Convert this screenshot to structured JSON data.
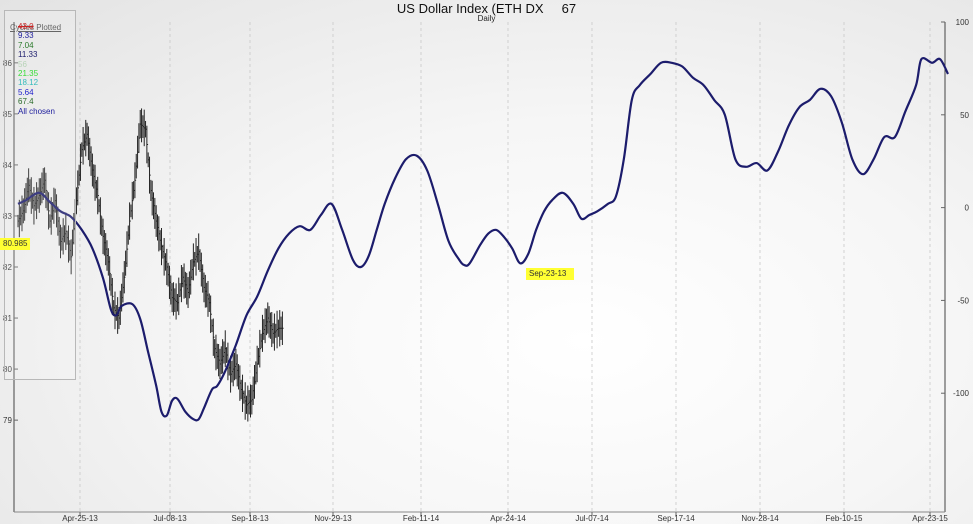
{
  "chart_data": {
    "type": "line",
    "title": "US Dollar Index (ETH DX",
    "title_value": "67",
    "subtitle": "Daily",
    "x_labels": [
      "Apr-25-13",
      "Jul-08-13",
      "Sep-18-13",
      "Nov-29-13",
      "Feb-11-14",
      "Apr-24-14",
      "Jul-07-14",
      "Sep-17-14",
      "Nov-28-14",
      "Feb-10-15",
      "Apr-23-15"
    ],
    "y_left": {
      "ticks": [
        79,
        80,
        81,
        82,
        83,
        84,
        85,
        86
      ],
      "range": [
        77.2,
        86.8
      ]
    },
    "y_right": {
      "ticks": [
        100,
        50,
        0,
        -50,
        -100
      ],
      "range": [
        -164,
        100
      ]
    },
    "grid": true,
    "legend_position": "top-left",
    "legend_title": "Cycles Plotted",
    "legend": [
      {
        "label": "43.0",
        "color": "#cc2222",
        "strike": true
      },
      {
        "label": "9.33",
        "color": "#1c1c9c"
      },
      {
        "label": "7.04",
        "color": "#2a7a2a"
      },
      {
        "label": "11.33",
        "color": "#1c1c6c"
      },
      {
        "label": "56",
        "color": "#b8d4b8"
      },
      {
        "label": "21.35",
        "color": "#33dd33"
      },
      {
        "label": "18.12",
        "color": "#33bbbb"
      },
      {
        "label": "5.64",
        "color": "#2222cc"
      },
      {
        "label": "67.4",
        "color": "#2a6a2a"
      },
      {
        "label": "All chosen",
        "color": "#1c1c9c"
      }
    ],
    "price_label": "80.985",
    "date_label": "Sep-23-13",
    "series": [
      {
        "type": "ohlc",
        "axis": "left",
        "points": [
          [
            0,
            82.9
          ],
          [
            2,
            83.1
          ],
          [
            4,
            83.6
          ],
          [
            6,
            83.2
          ],
          [
            8,
            83.4
          ],
          [
            10,
            83.7
          ],
          [
            12,
            82.9
          ],
          [
            14,
            83.3
          ],
          [
            16,
            82.5
          ],
          [
            18,
            82.7
          ],
          [
            20,
            82.2
          ],
          [
            22,
            83.3
          ],
          [
            24,
            84.3
          ],
          [
            26,
            84.6
          ],
          [
            28,
            83.9
          ],
          [
            30,
            83.4
          ],
          [
            32,
            82.6
          ],
          [
            34,
            82.1
          ],
          [
            36,
            81.2
          ],
          [
            38,
            81.0
          ],
          [
            40,
            81.8
          ],
          [
            42,
            82.9
          ],
          [
            44,
            83.7
          ],
          [
            46,
            84.8
          ],
          [
            48,
            84.7
          ],
          [
            50,
            83.5
          ],
          [
            52,
            82.9
          ],
          [
            54,
            82.4
          ],
          [
            56,
            82.0
          ],
          [
            58,
            81.4
          ],
          [
            60,
            81.3
          ],
          [
            62,
            81.8
          ],
          [
            64,
            81.5
          ],
          [
            66,
            82.1
          ],
          [
            68,
            82.3
          ],
          [
            70,
            81.6
          ],
          [
            72,
            81.3
          ],
          [
            74,
            80.4
          ],
          [
            76,
            80.1
          ],
          [
            78,
            80.4
          ],
          [
            80,
            79.9
          ],
          [
            82,
            80.1
          ],
          [
            84,
            79.6
          ],
          [
            86,
            79.3
          ],
          [
            88,
            79.4
          ],
          [
            90,
            80.1
          ],
          [
            92,
            80.7
          ],
          [
            94,
            81.0
          ],
          [
            96,
            80.7
          ],
          [
            98,
            80.8
          ]
        ]
      },
      {
        "name": "All chosen",
        "type": "cycle",
        "axis": "right",
        "color": "#1c1c6c",
        "points": [
          [
            0,
            2
          ],
          [
            3,
            4
          ],
          [
            8,
            8
          ],
          [
            12,
            3
          ],
          [
            16,
            -2
          ],
          [
            20,
            -5
          ],
          [
            24,
            -12
          ],
          [
            28,
            -22
          ],
          [
            32,
            -38
          ],
          [
            35,
            -55
          ],
          [
            37,
            -58
          ],
          [
            39,
            -53
          ],
          [
            43,
            -52
          ],
          [
            46,
            -60
          ],
          [
            49,
            -78
          ],
          [
            52,
            -96
          ],
          [
            54,
            -110
          ],
          [
            56,
            -112
          ],
          [
            58,
            -104
          ],
          [
            60,
            -103
          ],
          [
            63,
            -110
          ],
          [
            66,
            -114
          ],
          [
            68,
            -114
          ],
          [
            70,
            -108
          ],
          [
            73,
            -98
          ],
          [
            75,
            -96
          ],
          [
            78,
            -88
          ],
          [
            82,
            -74
          ],
          [
            86,
            -58
          ],
          [
            90,
            -48
          ],
          [
            94,
            -34
          ],
          [
            98,
            -22
          ],
          [
            102,
            -14
          ],
          [
            106,
            -10
          ],
          [
            110,
            -12
          ],
          [
            114,
            -4
          ],
          [
            118,
            2
          ],
          [
            122,
            -12
          ],
          [
            126,
            -28
          ],
          [
            129,
            -32
          ],
          [
            132,
            -26
          ],
          [
            135,
            -12
          ],
          [
            138,
            2
          ],
          [
            142,
            16
          ],
          [
            146,
            26
          ],
          [
            150,
            28
          ],
          [
            154,
            20
          ],
          [
            158,
            2
          ],
          [
            162,
            -18
          ],
          [
            166,
            -28
          ],
          [
            168,
            -31
          ],
          [
            170,
            -30
          ],
          [
            174,
            -20
          ],
          [
            177,
            -14
          ],
          [
            180,
            -12
          ],
          [
            183,
            -16
          ],
          [
            186,
            -22
          ],
          [
            189,
            -30
          ],
          [
            192,
            -25
          ],
          [
            195,
            -12
          ],
          [
            198,
            -2
          ],
          [
            201,
            4
          ],
          [
            205,
            8
          ],
          [
            209,
            2
          ],
          [
            212,
            -6
          ],
          [
            215,
            -4
          ],
          [
            218,
            -2
          ],
          [
            222,
            2
          ],
          [
            225,
            6
          ],
          [
            228,
            26
          ],
          [
            231,
            58
          ],
          [
            234,
            66
          ],
          [
            238,
            72
          ],
          [
            242,
            78
          ],
          [
            246,
            78
          ],
          [
            250,
            76
          ],
          [
            254,
            70
          ],
          [
            258,
            66
          ],
          [
            262,
            58
          ],
          [
            266,
            50
          ],
          [
            270,
            26
          ],
          [
            274,
            22
          ],
          [
            278,
            24
          ],
          [
            282,
            20
          ],
          [
            286,
            30
          ],
          [
            290,
            44
          ],
          [
            294,
            54
          ],
          [
            298,
            58
          ],
          [
            302,
            64
          ],
          [
            306,
            60
          ],
          [
            310,
            46
          ],
          [
            314,
            26
          ],
          [
            318,
            18
          ],
          [
            322,
            26
          ],
          [
            326,
            38
          ],
          [
            330,
            38
          ],
          [
            334,
            52
          ],
          [
            338,
            66
          ],
          [
            340,
            80
          ],
          [
            344,
            78
          ],
          [
            347,
            80
          ],
          [
            350,
            72
          ]
        ]
      }
    ]
  }
}
